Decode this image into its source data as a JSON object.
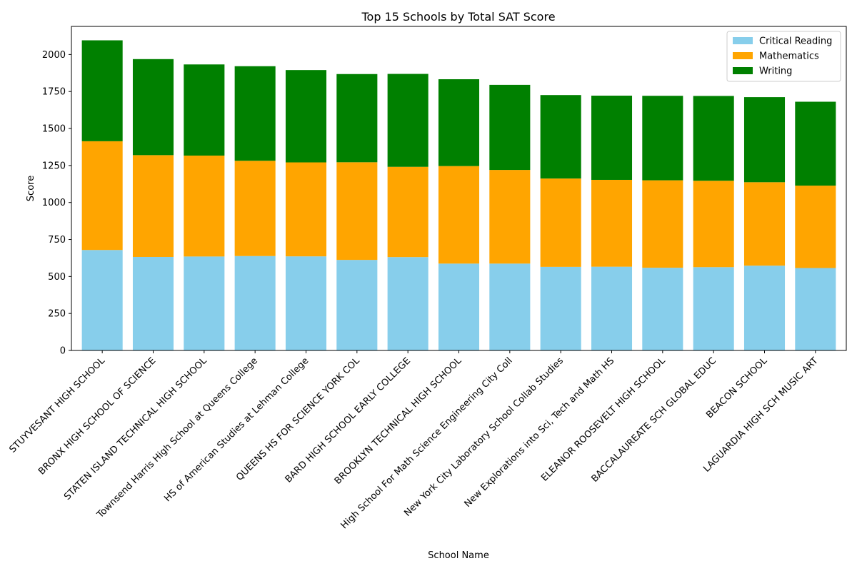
{
  "chart_data": {
    "type": "bar",
    "stacked": true,
    "title": "Top 15 Schools by Total SAT Score",
    "xlabel": "School Name",
    "ylabel": "Score",
    "ylim": [
      0,
      2190
    ],
    "yticks": [
      0,
      250,
      500,
      750,
      1000,
      1250,
      1500,
      1750,
      2000
    ],
    "legend_position": "top-right",
    "categories": [
      "STUYVESANT HIGH SCHOOL",
      "BRONX HIGH SCHOOL OF SCIENCE",
      "STATEN ISLAND TECHNICAL HIGH SCHOOL",
      "Townsend Harris High School at Queens College",
      "HS of American Studies at Lehman College",
      "QUEENS HS FOR SCIENCE YORK COL",
      "BARD HIGH SCHOOL EARLY COLLEGE",
      "BROOKLYN TECHNICAL HIGH SCHOOL",
      "High School For Math Science Engineering City Coll",
      "New York City Laboratory School Collab Studies",
      "New Explorations into Sci, Tech and Math HS",
      "ELEANOR ROOSEVELT HIGH SCHOOL",
      "BACCALAUREATE SCH GLOBAL EDUC",
      "BEACON SCHOOL",
      "LAGUARDIA HIGH SCH MUSIC ART"
    ],
    "series": [
      {
        "name": "Critical Reading",
        "color": "#87ceeb",
        "values": [
          679,
          632,
          635,
          638,
          636,
          612,
          631,
          587,
          587,
          565,
          566,
          559,
          563,
          573,
          557
        ]
      },
      {
        "name": "Mathematics",
        "color": "#ffa500",
        "values": [
          735,
          688,
          682,
          644,
          635,
          660,
          610,
          659,
          633,
          597,
          587,
          591,
          584,
          564,
          557
        ]
      },
      {
        "name": "Writing",
        "color": "#008000",
        "values": [
          682,
          649,
          616,
          639,
          624,
          596,
          628,
          587,
          575,
          564,
          569,
          571,
          573,
          575,
          567
        ]
      }
    ]
  }
}
